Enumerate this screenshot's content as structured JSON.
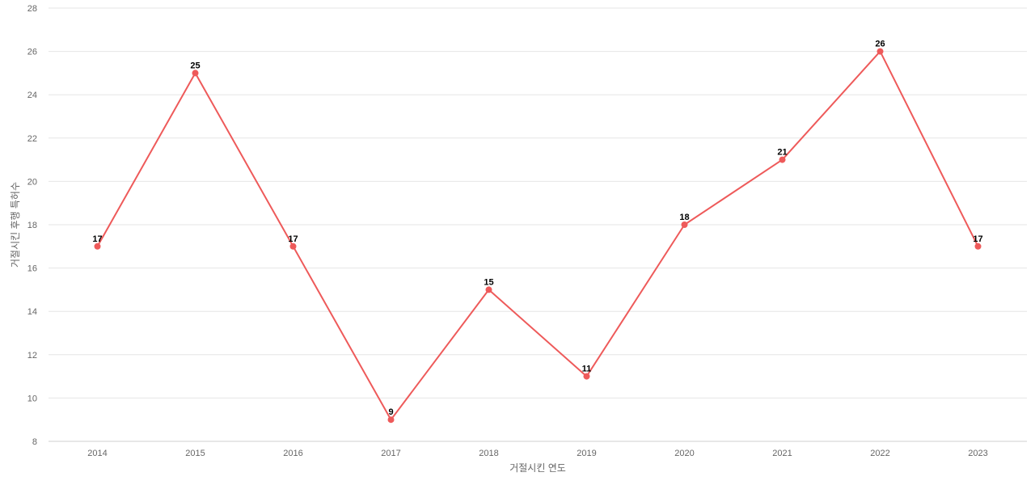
{
  "chart_data": {
    "type": "line",
    "title": "",
    "xlabel": "거절시킨 연도",
    "ylabel": "거절시킨 후행 특허수",
    "categories": [
      "2014",
      "2015",
      "2016",
      "2017",
      "2018",
      "2019",
      "2020",
      "2021",
      "2022",
      "2023"
    ],
    "series": [
      {
        "values": [
          17,
          25,
          17,
          9,
          15,
          11,
          18,
          21,
          26,
          17
        ],
        "color": "#ee5a5a"
      }
    ],
    "ylim": [
      8,
      28
    ],
    "yticks": [
      8,
      10,
      12,
      14,
      16,
      18,
      20,
      22,
      24,
      26,
      28
    ],
    "grid": true,
    "data_labels": true,
    "legend": "none"
  }
}
